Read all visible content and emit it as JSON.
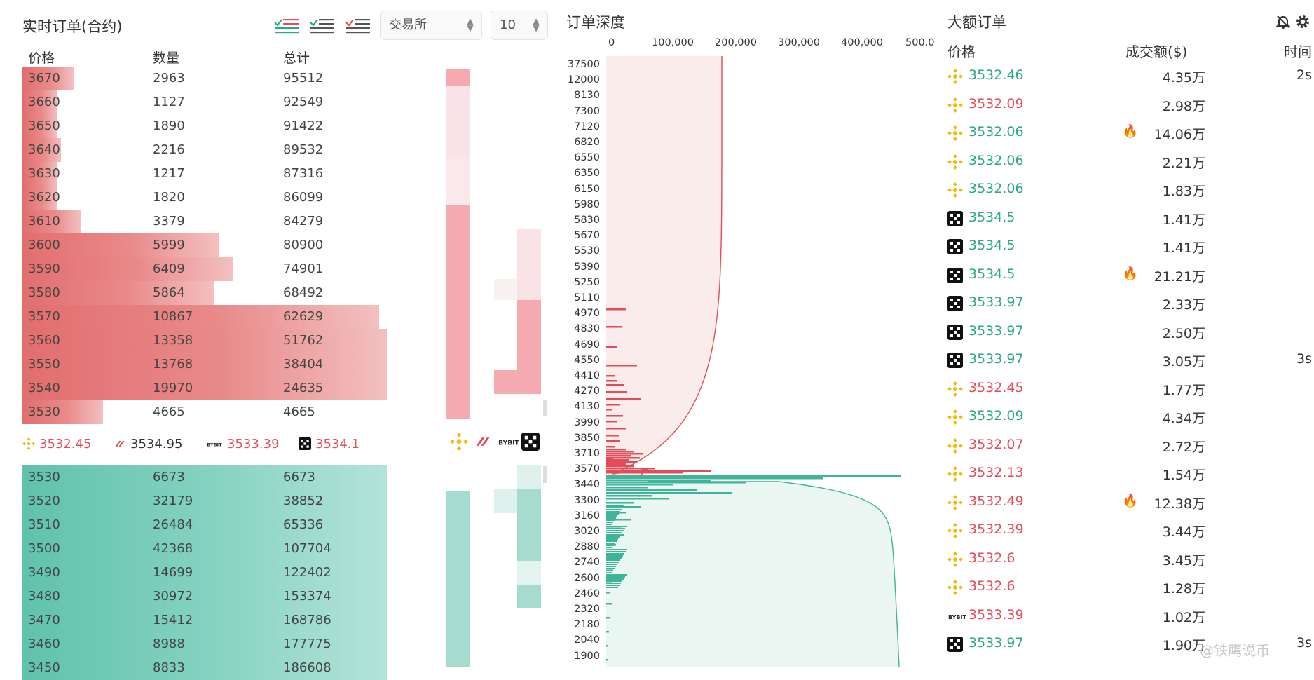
{
  "left": {
    "title": "实时订单(合约)",
    "exchange_select": "交易所",
    "depth_select": "10",
    "headers": {
      "price": "价格",
      "qty": "数量",
      "total": "总计"
    },
    "asks": [
      {
        "price": "3670",
        "qty": "2963",
        "total": "95512"
      },
      {
        "price": "3660",
        "qty": "1127",
        "total": "92549"
      },
      {
        "price": "3650",
        "qty": "1890",
        "total": "91422"
      },
      {
        "price": "3640",
        "qty": "2216",
        "total": "89532"
      },
      {
        "price": "3630",
        "qty": "1217",
        "total": "87316"
      },
      {
        "price": "3620",
        "qty": "1820",
        "total": "86099"
      },
      {
        "price": "3610",
        "qty": "3379",
        "total": "84279"
      },
      {
        "price": "3600",
        "qty": "5999",
        "total": "80900"
      },
      {
        "price": "3590",
        "qty": "6409",
        "total": "74901"
      },
      {
        "price": "3580",
        "qty": "5864",
        "total": "68492"
      },
      {
        "price": "3570",
        "qty": "10867",
        "total": "62629"
      },
      {
        "price": "3560",
        "qty": "13358",
        "total": "51762"
      },
      {
        "price": "3550",
        "qty": "13768",
        "total": "38404"
      },
      {
        "price": "3540",
        "qty": "19970",
        "total": "24635"
      },
      {
        "price": "3530",
        "qty": "4665",
        "total": "4665"
      }
    ],
    "bids": [
      {
        "price": "3530",
        "qty": "6673",
        "total": "6673"
      },
      {
        "price": "3520",
        "qty": "32179",
        "total": "38852"
      },
      {
        "price": "3510",
        "qty": "26484",
        "total": "65336"
      },
      {
        "price": "3500",
        "qty": "42368",
        "total": "107704"
      },
      {
        "price": "3490",
        "qty": "14699",
        "total": "122402"
      },
      {
        "price": "3480",
        "qty": "30972",
        "total": "153374"
      },
      {
        "price": "3470",
        "qty": "15412",
        "total": "168786"
      },
      {
        "price": "3460",
        "qty": "8988",
        "total": "177775"
      },
      {
        "price": "3450",
        "qty": "8833",
        "total": "186608"
      }
    ],
    "exchange_prices": [
      {
        "exchange": "binance",
        "price": "3532.45",
        "color": "#e24d5a"
      },
      {
        "exchange": "bitget",
        "price": "3534.95",
        "color": "#333333"
      },
      {
        "exchange": "bybit",
        "price": "3533.39",
        "color": "#e24d5a"
      },
      {
        "exchange": "okx",
        "price": "3534.1",
        "color": "#e24d5a"
      }
    ]
  },
  "depth": {
    "title": "订单深度",
    "x_ticks": [
      "0",
      "100,000",
      "200,000",
      "300,000",
      "400,000",
      "500,0"
    ],
    "y_ticks": [
      "37500",
      "12000",
      "8130",
      "7300",
      "7120",
      "6820",
      "6550",
      "6350",
      "6150",
      "5980",
      "5830",
      "5670",
      "5530",
      "5390",
      "5250",
      "5110",
      "4970",
      "4830",
      "4690",
      "4550",
      "4410",
      "4270",
      "4130",
      "3990",
      "3850",
      "3710",
      "3570",
      "3440",
      "3300",
      "3160",
      "3020",
      "2880",
      "2740",
      "2600",
      "2460",
      "2320",
      "2180",
      "2040",
      "1900"
    ]
  },
  "big_orders": {
    "title": "大额订单",
    "headers": {
      "price": "价格",
      "amount": "成交额($)",
      "time": "时间"
    },
    "rows": [
      {
        "ex": "binance",
        "price": "3532.46",
        "side": "buy",
        "amount": "4.35万",
        "fire": false,
        "time": "2s"
      },
      {
        "ex": "binance",
        "price": "3532.09",
        "side": "sell",
        "amount": "2.98万",
        "fire": false,
        "time": ""
      },
      {
        "ex": "binance",
        "price": "3532.06",
        "side": "buy",
        "amount": "14.06万",
        "fire": true,
        "time": ""
      },
      {
        "ex": "binance",
        "price": "3532.06",
        "side": "buy",
        "amount": "2.21万",
        "fire": false,
        "time": ""
      },
      {
        "ex": "binance",
        "price": "3532.06",
        "side": "buy",
        "amount": "1.83万",
        "fire": false,
        "time": ""
      },
      {
        "ex": "okx",
        "price": "3534.5",
        "side": "buy",
        "amount": "1.41万",
        "fire": false,
        "time": ""
      },
      {
        "ex": "okx",
        "price": "3534.5",
        "side": "buy",
        "amount": "1.41万",
        "fire": false,
        "time": ""
      },
      {
        "ex": "okx",
        "price": "3534.5",
        "side": "buy",
        "amount": "21.21万",
        "fire": true,
        "time": ""
      },
      {
        "ex": "okx",
        "price": "3533.97",
        "side": "buy",
        "amount": "2.33万",
        "fire": false,
        "time": ""
      },
      {
        "ex": "okx",
        "price": "3533.97",
        "side": "buy",
        "amount": "2.50万",
        "fire": false,
        "time": ""
      },
      {
        "ex": "okx",
        "price": "3533.97",
        "side": "buy",
        "amount": "3.05万",
        "fire": false,
        "time": "3s"
      },
      {
        "ex": "binance",
        "price": "3532.45",
        "side": "sell",
        "amount": "1.77万",
        "fire": false,
        "time": ""
      },
      {
        "ex": "binance",
        "price": "3532.09",
        "side": "buy",
        "amount": "4.34万",
        "fire": false,
        "time": ""
      },
      {
        "ex": "binance",
        "price": "3532.07",
        "side": "sell",
        "amount": "2.72万",
        "fire": false,
        "time": ""
      },
      {
        "ex": "binance",
        "price": "3532.13",
        "side": "sell",
        "amount": "1.54万",
        "fire": false,
        "time": ""
      },
      {
        "ex": "binance",
        "price": "3532.49",
        "side": "sell",
        "amount": "12.38万",
        "fire": true,
        "time": ""
      },
      {
        "ex": "binance",
        "price": "3532.39",
        "side": "sell",
        "amount": "3.44万",
        "fire": false,
        "time": ""
      },
      {
        "ex": "binance",
        "price": "3532.6",
        "side": "sell",
        "amount": "3.45万",
        "fire": false,
        "time": ""
      },
      {
        "ex": "binance",
        "price": "3532.6",
        "side": "sell",
        "amount": "1.28万",
        "fire": false,
        "time": ""
      },
      {
        "ex": "bybit",
        "price": "3533.39",
        "side": "sell",
        "amount": "1.02万",
        "fire": false,
        "time": ""
      },
      {
        "ex": "okx",
        "price": "3533.97",
        "side": "buy",
        "amount": "1.90万",
        "fire": false,
        "time": "3s"
      }
    ]
  },
  "icons": {
    "bell_off": "bell-off-icon",
    "settings": "gear-icon",
    "fire": "fire-icon"
  },
  "colors": {
    "ask": "#e26e6e",
    "bid": "#5fc2ad",
    "buy_text": "#2aa889",
    "sell_text": "#e24d5a",
    "binance": "#f0b90b"
  },
  "watermark": "@铁鹰说币"
}
